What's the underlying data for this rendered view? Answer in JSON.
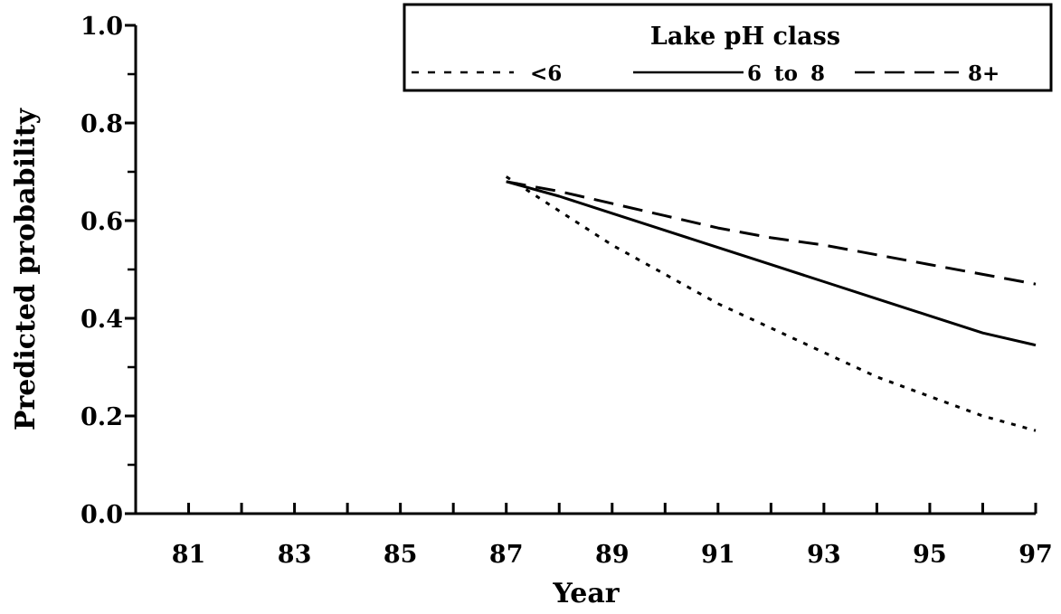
{
  "chart_data": {
    "type": "line",
    "xlabel": "Year",
    "ylabel": "Predicted probability",
    "xlim": [
      80,
      97
    ],
    "ylim": [
      0.0,
      1.0
    ],
    "x_ticks": [
      81,
      83,
      85,
      87,
      89,
      91,
      93,
      95,
      97
    ],
    "x_ticks_labeled": [
      "81",
      "83",
      "85",
      "87",
      "89",
      "91",
      "93",
      "95",
      "97"
    ],
    "x_minor_ticks": [
      82,
      84,
      86,
      88,
      90,
      92,
      94,
      96
    ],
    "y_ticks": [
      0.0,
      0.2,
      0.4,
      0.6,
      0.8,
      1.0
    ],
    "y_tick_labels": [
      "0.0",
      "0.2",
      "0.4",
      "0.6",
      "0.8",
      "1.0"
    ],
    "y_minor_ticks": [
      0.1,
      0.3,
      0.5,
      0.7,
      0.9
    ],
    "grid": false,
    "legend": {
      "title": "Lake pH class",
      "placement": "top-right",
      "entries": [
        "<6",
        "6 to 8",
        "8+"
      ]
    },
    "series": [
      {
        "name": "<6",
        "line_style": "dotted",
        "x": [
          87,
          88,
          89,
          90,
          91,
          92,
          93,
          94,
          95,
          96,
          97
        ],
        "y": [
          0.69,
          0.62,
          0.55,
          0.49,
          0.43,
          0.38,
          0.33,
          0.28,
          0.24,
          0.2,
          0.17
        ]
      },
      {
        "name": "6 to 8",
        "line_style": "solid",
        "x": [
          87,
          88,
          89,
          90,
          91,
          92,
          93,
          94,
          95,
          96,
          97
        ],
        "y": [
          0.68,
          0.65,
          0.615,
          0.58,
          0.545,
          0.51,
          0.475,
          0.44,
          0.405,
          0.37,
          0.345
        ]
      },
      {
        "name": "8+",
        "line_style": "dashed",
        "x": [
          87,
          88,
          89,
          90,
          91,
          92,
          93,
          94,
          95,
          96,
          97
        ],
        "y": [
          0.68,
          0.66,
          0.635,
          0.61,
          0.585,
          0.565,
          0.55,
          0.53,
          0.51,
          0.49,
          0.47
        ]
      }
    ]
  }
}
